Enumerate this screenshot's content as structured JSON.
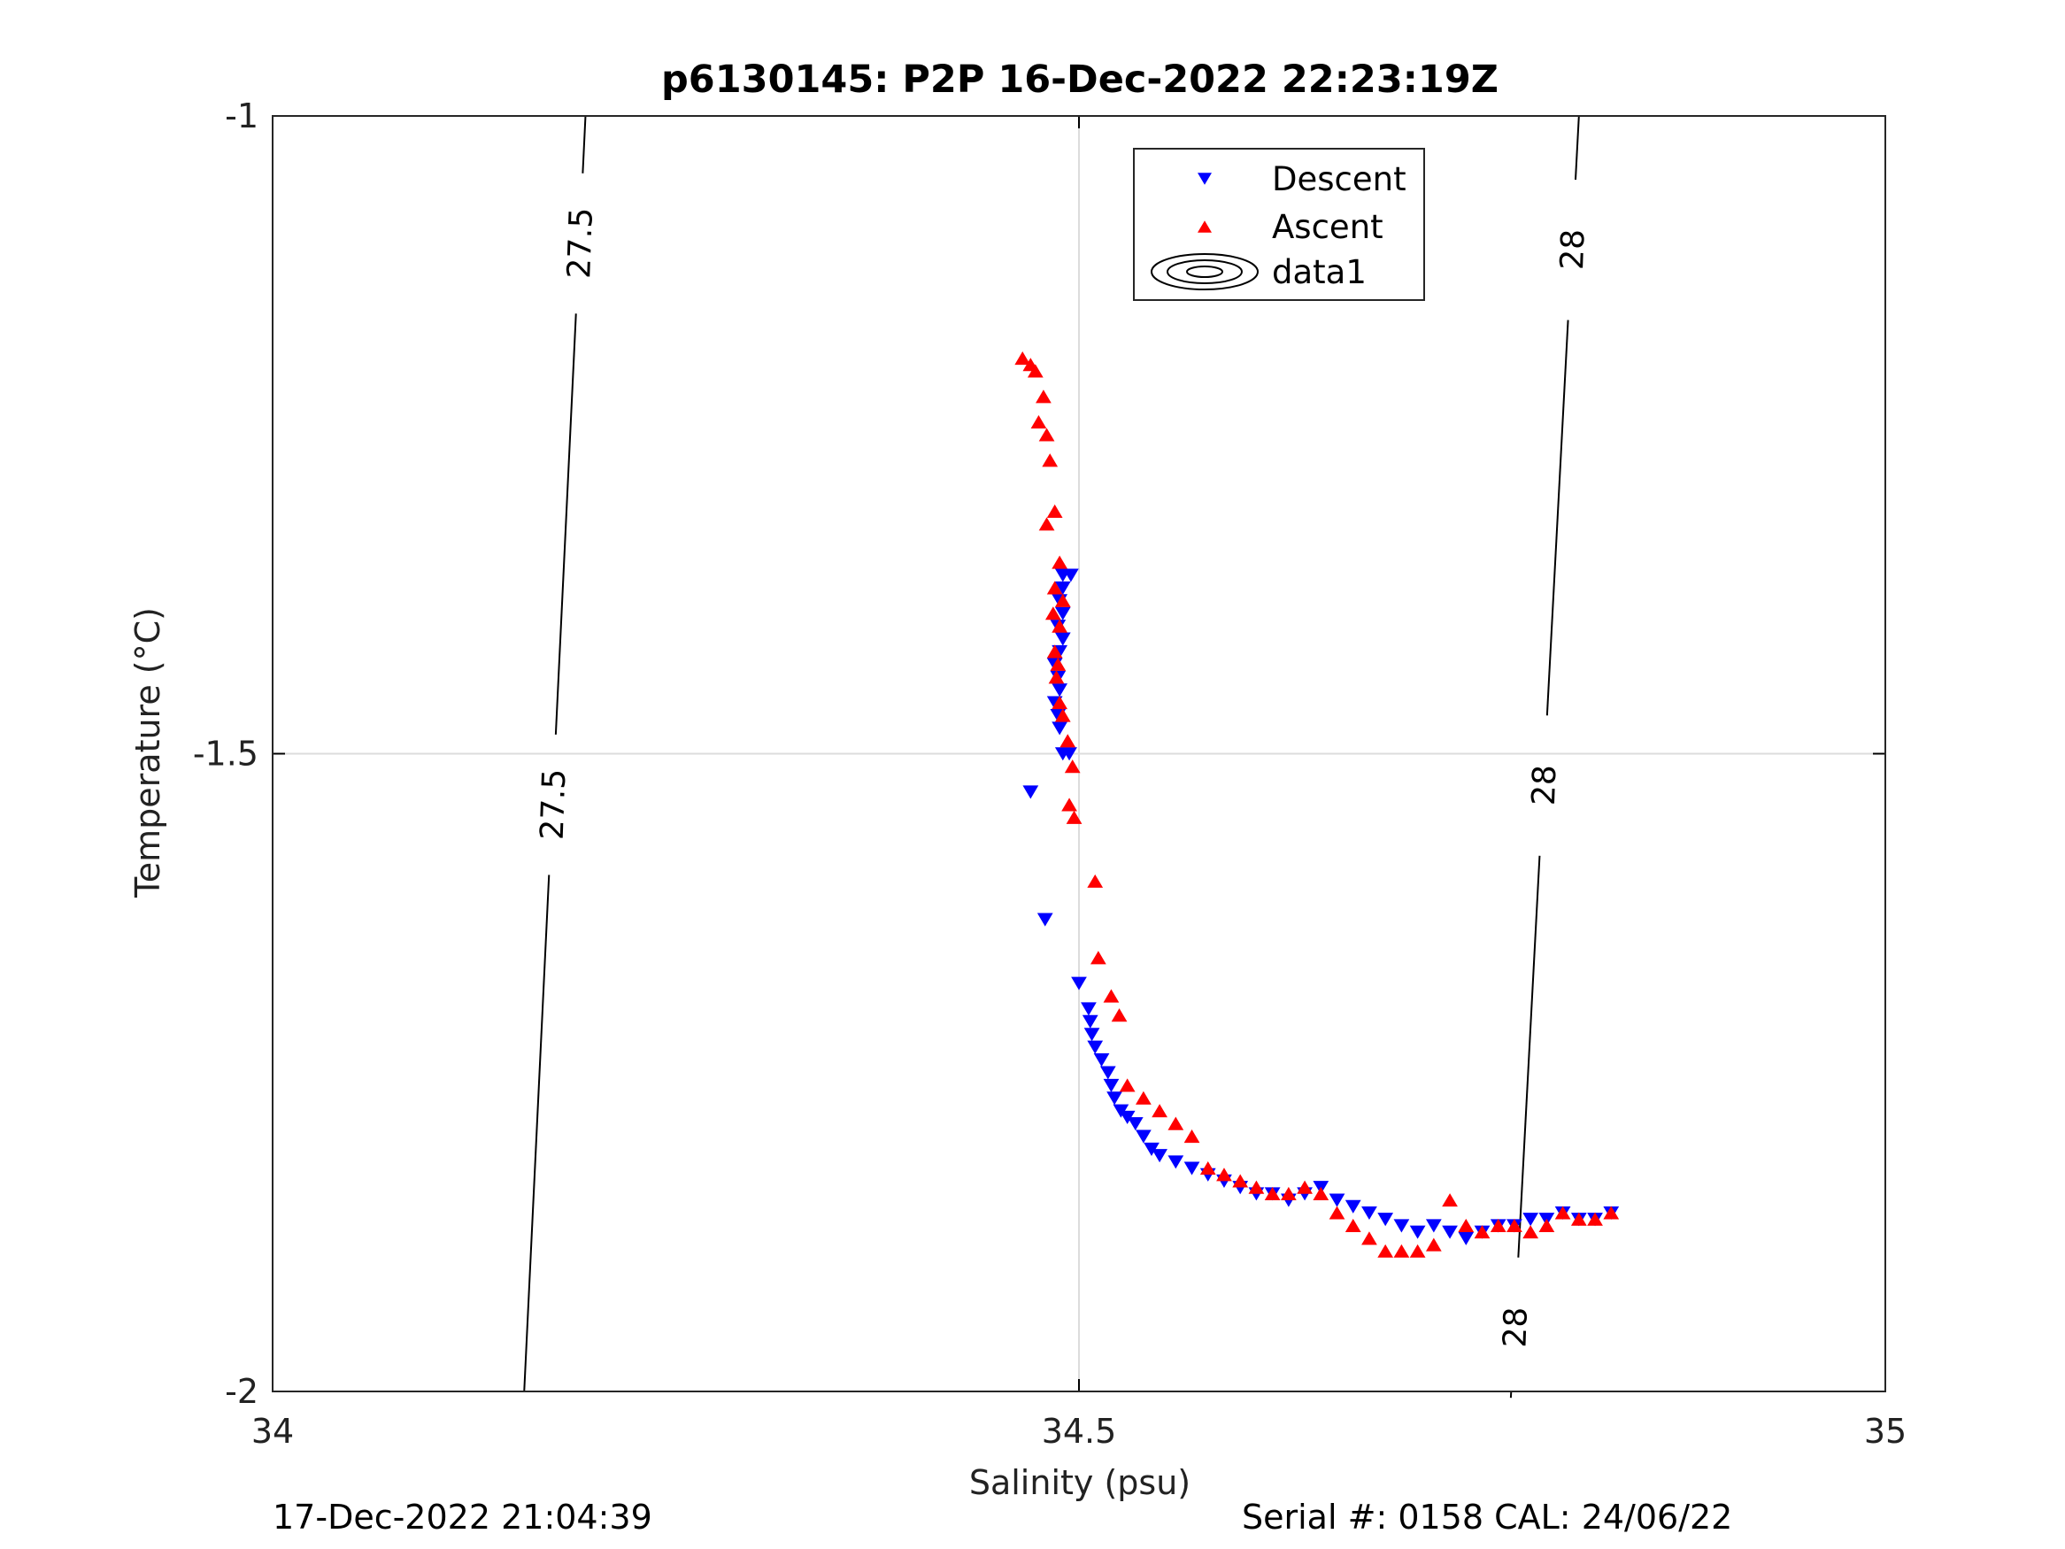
{
  "chart_data": {
    "type": "scatter",
    "title": "p6130145: P2P 16-Dec-2022 22:23:19Z",
    "xlabel": "Salinity (psu)",
    "ylabel": "Temperature (°C)",
    "xlim": [
      34,
      35
    ],
    "ylim": [
      -2,
      -1
    ],
    "xticks": [
      "34",
      "34.5",
      "35"
    ],
    "yticks": [
      "-1",
      "-1.5",
      "-2"
    ],
    "grid": true,
    "legend_position": "top-right",
    "legend": [
      "Descent",
      "Ascent",
      "data1"
    ],
    "colors": {
      "descent": "#0000ff",
      "ascent": "#ff0000",
      "contour": "#000000",
      "grid": "#dcdcdc"
    },
    "contours": [
      {
        "name": "data1",
        "level": "27.5",
        "points": [
          [
            34.194,
            -1.0
          ],
          [
            34.156,
            -2.0
          ]
        ],
        "label_at_y": [
          -1.1,
          -1.54
        ]
      },
      {
        "name": "data1",
        "level": "28",
        "points": [
          [
            34.81,
            -1.0
          ],
          [
            34.768,
            -2.0
          ]
        ],
        "label_at_y": [
          -1.105,
          -1.525,
          -1.95
        ]
      }
    ],
    "series": [
      {
        "name": "Descent",
        "marker": "triangle-down",
        "points": [
          [
            34.49,
            -1.36
          ],
          [
            34.495,
            -1.36
          ],
          [
            34.49,
            -1.37
          ],
          [
            34.488,
            -1.38
          ],
          [
            34.49,
            -1.39
          ],
          [
            34.487,
            -1.4
          ],
          [
            34.49,
            -1.41
          ],
          [
            34.488,
            -1.42
          ],
          [
            34.485,
            -1.43
          ],
          [
            34.487,
            -1.44
          ],
          [
            34.488,
            -1.45
          ],
          [
            34.485,
            -1.46
          ],
          [
            34.487,
            -1.47
          ],
          [
            34.488,
            -1.48
          ],
          [
            34.49,
            -1.5
          ],
          [
            34.494,
            -1.5
          ],
          [
            34.47,
            -1.53
          ],
          [
            34.479,
            -1.63
          ],
          [
            34.5,
            -1.68
          ],
          [
            34.506,
            -1.7
          ],
          [
            34.507,
            -1.71
          ],
          [
            34.508,
            -1.72
          ],
          [
            34.51,
            -1.73
          ],
          [
            34.514,
            -1.74
          ],
          [
            34.518,
            -1.75
          ],
          [
            34.52,
            -1.76
          ],
          [
            34.522,
            -1.77
          ],
          [
            34.526,
            -1.78
          ],
          [
            34.53,
            -1.785
          ],
          [
            34.535,
            -1.79
          ],
          [
            34.54,
            -1.8
          ],
          [
            34.545,
            -1.81
          ],
          [
            34.55,
            -1.815
          ],
          [
            34.56,
            -1.82
          ],
          [
            34.57,
            -1.825
          ],
          [
            34.58,
            -1.83
          ],
          [
            34.59,
            -1.835
          ],
          [
            34.6,
            -1.84
          ],
          [
            34.61,
            -1.845
          ],
          [
            34.62,
            -1.845
          ],
          [
            34.63,
            -1.85
          ],
          [
            34.64,
            -1.845
          ],
          [
            34.65,
            -1.84
          ],
          [
            34.66,
            -1.85
          ],
          [
            34.67,
            -1.855
          ],
          [
            34.68,
            -1.86
          ],
          [
            34.69,
            -1.865
          ],
          [
            34.7,
            -1.87
          ],
          [
            34.71,
            -1.875
          ],
          [
            34.72,
            -1.87
          ],
          [
            34.73,
            -1.875
          ],
          [
            34.74,
            -1.88
          ],
          [
            34.75,
            -1.875
          ],
          [
            34.76,
            -1.87
          ],
          [
            34.77,
            -1.87
          ],
          [
            34.78,
            -1.865
          ],
          [
            34.79,
            -1.865
          ],
          [
            34.8,
            -1.86
          ],
          [
            34.81,
            -1.865
          ],
          [
            34.82,
            -1.865
          ],
          [
            34.83,
            -1.86
          ]
        ]
      },
      {
        "name": "Ascent",
        "marker": "triangle-up",
        "points": [
          [
            34.465,
            -1.19
          ],
          [
            34.47,
            -1.195
          ],
          [
            34.473,
            -1.2
          ],
          [
            34.478,
            -1.22
          ],
          [
            34.475,
            -1.24
          ],
          [
            34.48,
            -1.25
          ],
          [
            34.482,
            -1.27
          ],
          [
            34.485,
            -1.31
          ],
          [
            34.48,
            -1.32
          ],
          [
            34.488,
            -1.35
          ],
          [
            34.485,
            -1.37
          ],
          [
            34.49,
            -1.38
          ],
          [
            34.484,
            -1.39
          ],
          [
            34.488,
            -1.4
          ],
          [
            34.485,
            -1.42
          ],
          [
            34.487,
            -1.43
          ],
          [
            34.486,
            -1.44
          ],
          [
            34.488,
            -1.46
          ],
          [
            34.49,
            -1.47
          ],
          [
            34.493,
            -1.49
          ],
          [
            34.496,
            -1.51
          ],
          [
            34.494,
            -1.54
          ],
          [
            34.497,
            -1.55
          ],
          [
            34.51,
            -1.6
          ],
          [
            34.512,
            -1.66
          ],
          [
            34.52,
            -1.69
          ],
          [
            34.525,
            -1.705
          ],
          [
            34.53,
            -1.76
          ],
          [
            34.54,
            -1.77
          ],
          [
            34.55,
            -1.78
          ],
          [
            34.56,
            -1.79
          ],
          [
            34.57,
            -1.8
          ],
          [
            34.58,
            -1.825
          ],
          [
            34.59,
            -1.83
          ],
          [
            34.6,
            -1.835
          ],
          [
            34.61,
            -1.84
          ],
          [
            34.62,
            -1.845
          ],
          [
            34.63,
            -1.845
          ],
          [
            34.64,
            -1.84
          ],
          [
            34.65,
            -1.845
          ],
          [
            34.66,
            -1.86
          ],
          [
            34.67,
            -1.87
          ],
          [
            34.68,
            -1.88
          ],
          [
            34.69,
            -1.89
          ],
          [
            34.7,
            -1.89
          ],
          [
            34.71,
            -1.89
          ],
          [
            34.72,
            -1.885
          ],
          [
            34.73,
            -1.85
          ],
          [
            34.74,
            -1.87
          ],
          [
            34.75,
            -1.875
          ],
          [
            34.76,
            -1.87
          ],
          [
            34.77,
            -1.87
          ],
          [
            34.78,
            -1.875
          ],
          [
            34.79,
            -1.87
          ],
          [
            34.8,
            -1.86
          ],
          [
            34.81,
            -1.865
          ],
          [
            34.82,
            -1.865
          ],
          [
            34.83,
            -1.86
          ]
        ]
      }
    ]
  },
  "footer": {
    "left": "17-Dec-2022 21:04:39",
    "right": "Serial #: 0158  CAL: 24/06/22"
  }
}
